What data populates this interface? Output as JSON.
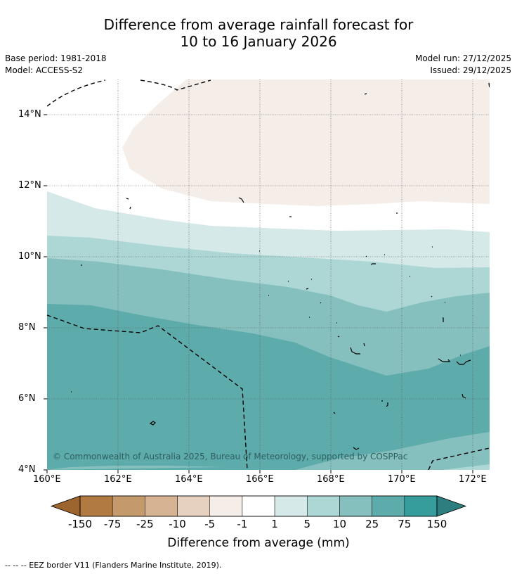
{
  "title_line1": "Difference from average rainfall forecast for",
  "title_line2": "10 to 16 January 2026",
  "base_period": "Base period: 1981-2018",
  "model": "Model: ACCESS-S2",
  "model_run": "Model run: 27/12/2025",
  "issued": "Issued: 29/12/2025",
  "copyright": "© Commonwealth of Australia 2025, Bureau of Meteorology, supported by COSPPac",
  "colorbar_label": "Difference from average (mm)",
  "footer_note": "--  --  -- EEZ border V11 (Flanders Marine Institute, 2019).",
  "map": {
    "lon_range": [
      160,
      172.5
    ],
    "lat_range": [
      4,
      15
    ],
    "x_ticks": [
      "160°E",
      "162°E",
      "164°E",
      "166°E",
      "168°E",
      "170°E",
      "172°E"
    ],
    "y_ticks": [
      "14°N",
      "12°N",
      "10°N",
      "8°N",
      "6°N",
      "4°N"
    ]
  },
  "colorbar": {
    "ticks": [
      "-150",
      "-75",
      "-25",
      "-10",
      "-5",
      "-1",
      "1",
      "5",
      "10",
      "25",
      "75",
      "150"
    ],
    "colors": [
      "#9c6530",
      "#b07a42",
      "#c49a6c",
      "#d6b392",
      "#e6d0bf",
      "#f5ede7",
      "#ffffff",
      "#d5e9e8",
      "#add7d5",
      "#85c0be",
      "#5dabab",
      "#379c9c",
      "#2d7e7e"
    ]
  }
}
